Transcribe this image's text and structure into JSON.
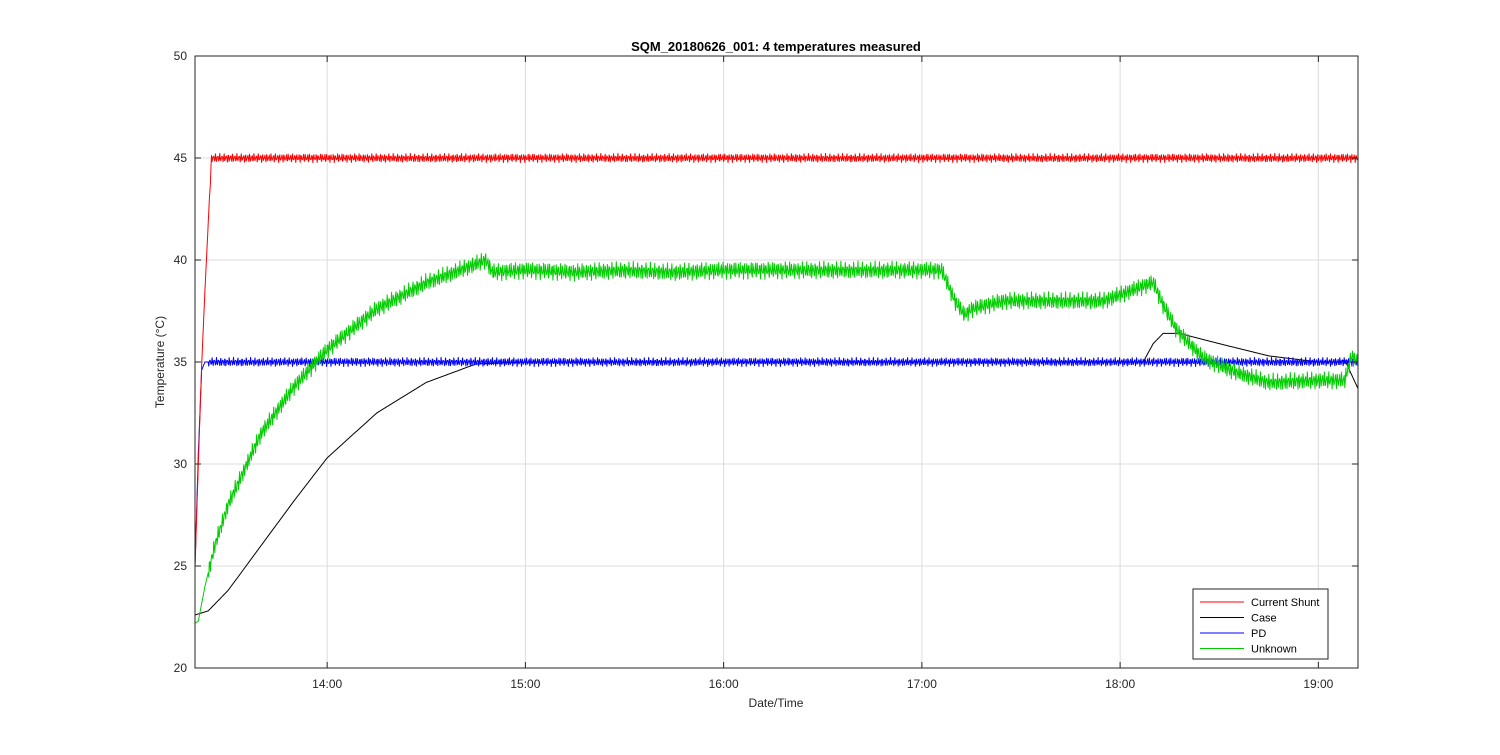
{
  "chart_data": {
    "type": "line",
    "title": "SQM_20180626_001: 4 temperatures measured",
    "xlabel": "Date/Time",
    "ylabel": "Temperature (°C)",
    "xlim": [
      "13:20",
      "19:12"
    ],
    "ylim": [
      20,
      50
    ],
    "xticks": [
      "14:00",
      "15:00",
      "16:00",
      "17:00",
      "18:00",
      "19:00"
    ],
    "yticks": [
      20,
      25,
      30,
      35,
      40,
      45,
      50
    ],
    "grid": true,
    "legend_position": "bottom-right",
    "series": [
      {
        "name": "Current Shunt",
        "color": "#ff0000",
        "x": [
          "13:20",
          "13:21",
          "13:22",
          "13:23",
          "13:24",
          "13:25",
          "13:26",
          "13:27",
          "19:12"
        ],
        "y": [
          25.0,
          30.0,
          34.8,
          38.5,
          41.8,
          45.0,
          45.0,
          45.0,
          45.0
        ],
        "noise": 0.15
      },
      {
        "name": "Case",
        "color": "#000000",
        "x": [
          "13:20",
          "13:24",
          "13:30",
          "13:40",
          "13:50",
          "14:00",
          "14:15",
          "14:30",
          "14:45",
          "15:00",
          "18:07",
          "18:10",
          "18:13",
          "18:18",
          "18:30",
          "18:45",
          "19:00",
          "19:06",
          "19:08",
          "19:10",
          "19:12"
        ],
        "y": [
          22.6,
          22.8,
          23.8,
          26.0,
          28.2,
          30.3,
          32.5,
          34.0,
          34.9,
          35.0,
          35.0,
          35.9,
          36.4,
          36.4,
          35.9,
          35.3,
          35.0,
          35.0,
          35.1,
          34.4,
          33.7
        ],
        "noise": 0
      },
      {
        "name": "PD",
        "color": "#0000ff",
        "x": [
          "13:20",
          "13:21",
          "13:22",
          "13:23",
          "19:12"
        ],
        "y": [
          25.0,
          30.5,
          34.6,
          35.0,
          35.0
        ],
        "noise": 0.15
      },
      {
        "name": "Unknown",
        "color": "#00cc00",
        "x": [
          "13:20",
          "13:21",
          "13:23",
          "13:26",
          "13:30",
          "13:40",
          "13:50",
          "14:00",
          "14:15",
          "14:30",
          "14:45",
          "14:48",
          "14:50",
          "15:00",
          "15:15",
          "15:30",
          "15:45",
          "16:00",
          "16:15",
          "16:30",
          "16:45",
          "17:00",
          "17:06",
          "17:10",
          "17:13",
          "17:15",
          "17:25",
          "17:40",
          "17:55",
          "18:05",
          "18:10",
          "18:13",
          "18:17",
          "18:25",
          "18:35",
          "18:45",
          "19:00",
          "19:08",
          "19:10",
          "19:12"
        ],
        "y": [
          22.2,
          22.3,
          24.0,
          26.0,
          28.0,
          31.5,
          33.8,
          35.6,
          37.6,
          38.9,
          39.8,
          40.0,
          39.4,
          39.5,
          39.4,
          39.5,
          39.4,
          39.5,
          39.5,
          39.5,
          39.5,
          39.5,
          39.5,
          38.0,
          37.3,
          37.6,
          38.0,
          38.0,
          38.0,
          38.6,
          38.9,
          37.8,
          36.6,
          35.2,
          34.5,
          34.0,
          34.1,
          34.1,
          35.3,
          35.0
        ],
        "noise": 0.3
      }
    ]
  }
}
